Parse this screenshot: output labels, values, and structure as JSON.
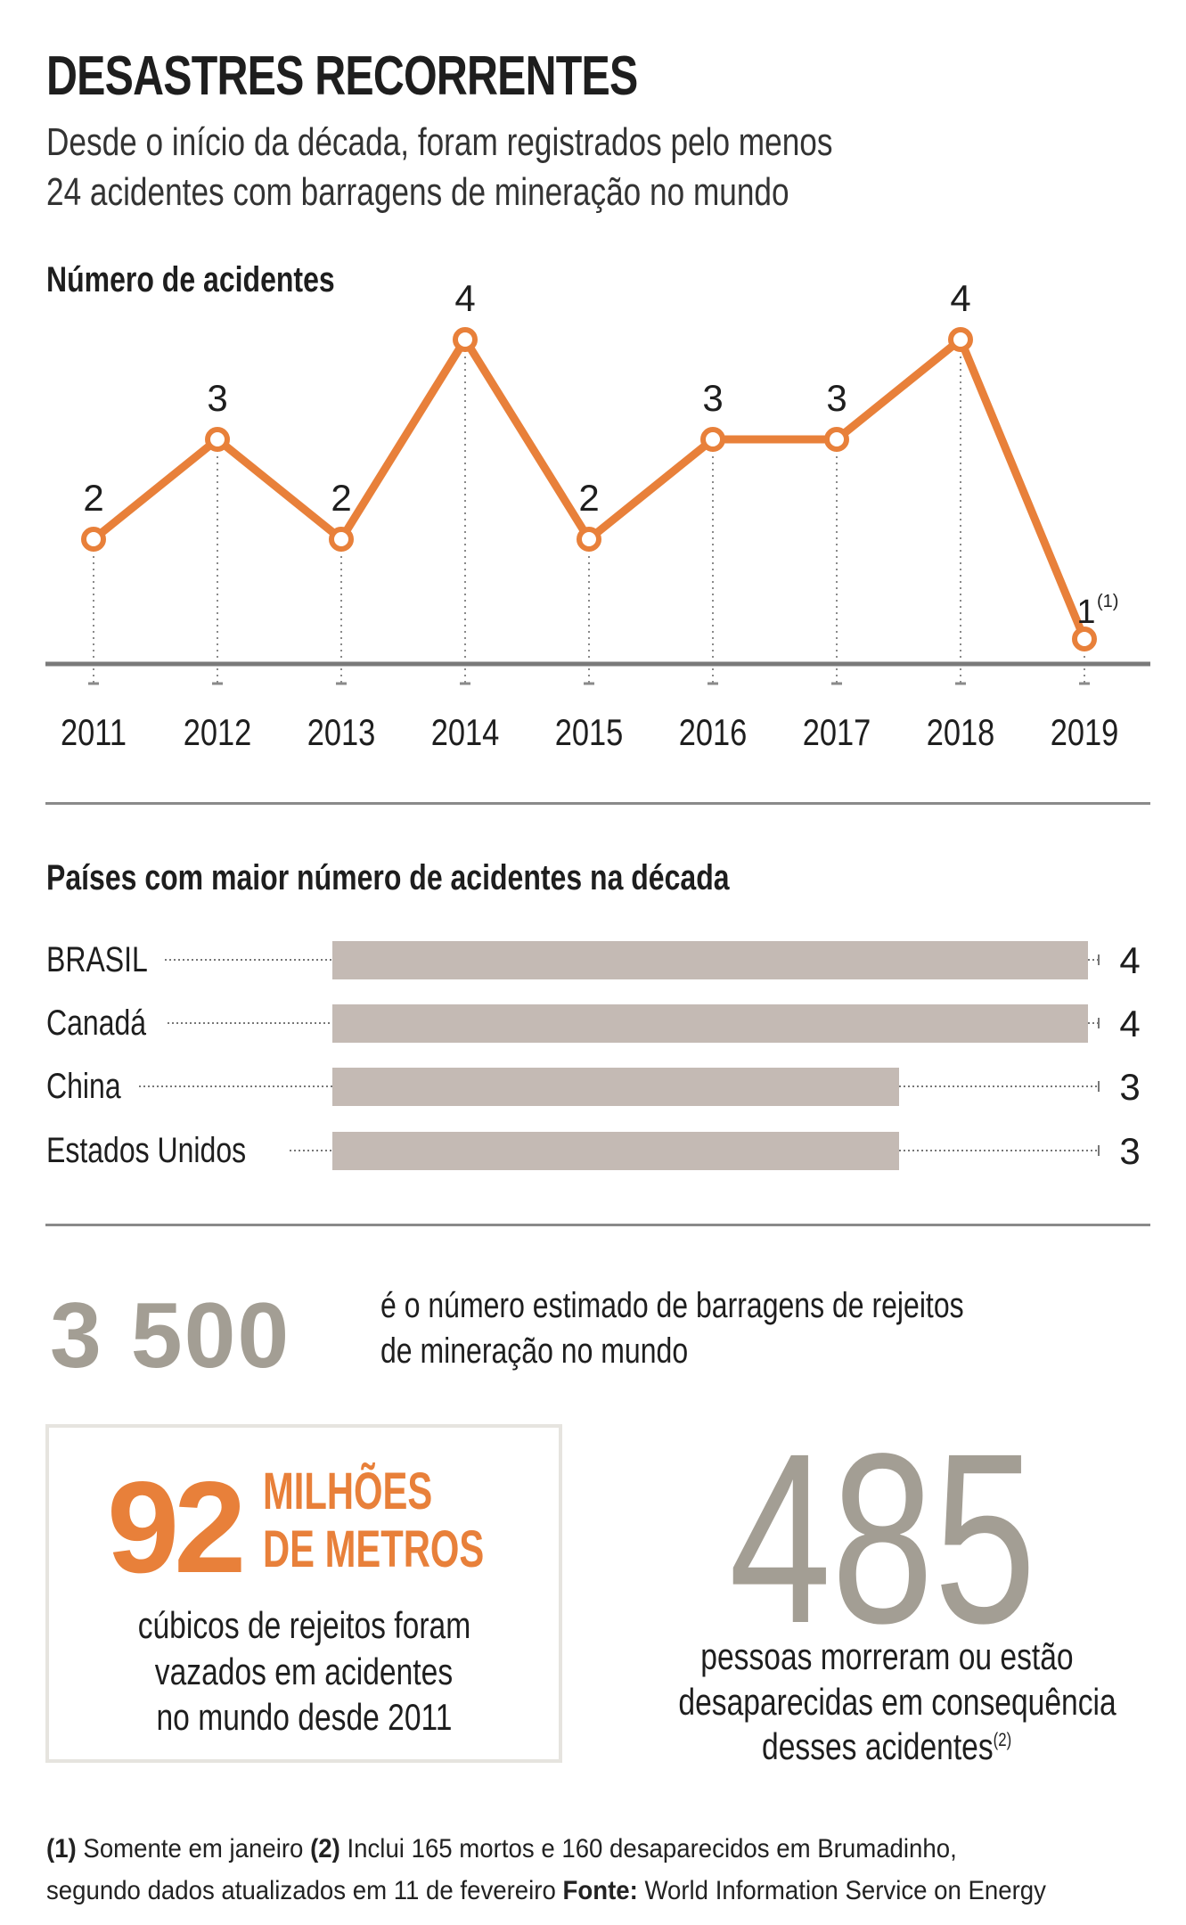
{
  "title": "DESASTRES RECORRENTES",
  "subtitle": [
    "Desde o início da década, foram registrados pelo menos",
    "24 acidentes com barragens de mineração no mundo"
  ],
  "colors": {
    "accent": "#e8803a",
    "bar": "#c4bab4",
    "gray_number": "#a39e94",
    "axis": "#7a7a7a"
  },
  "chart_data": [
    {
      "type": "line",
      "title": "Número de acidentes",
      "x": [
        "2011",
        "2012",
        "2013",
        "2014",
        "2015",
        "2016",
        "2017",
        "2018",
        "2019"
      ],
      "values": [
        2,
        3,
        2,
        4,
        2,
        3,
        3,
        4,
        1
      ],
      "labels": [
        "2",
        "3",
        "2",
        "4",
        "2",
        "3",
        "3",
        "4",
        "1"
      ],
      "annotations": {
        "2019": "(1)"
      },
      "ylim": [
        1,
        4
      ],
      "grid": false
    },
    {
      "type": "bar",
      "title": "Países com maior número de acidentes na década",
      "categories": [
        "BRASIL",
        "Canadá",
        "China",
        "Estados Unidos"
      ],
      "values": [
        4,
        4,
        3,
        3
      ],
      "labels": [
        "4",
        "4",
        "3",
        "3"
      ],
      "xlim": [
        0,
        4
      ]
    }
  ],
  "stat1": {
    "number": "3 500",
    "text": [
      "é o número estimado de barragens de rejeitos",
      "de mineração no mundo"
    ]
  },
  "stat2": {
    "number": "92",
    "unit": [
      "MILHÕES",
      "DE METROS"
    ],
    "text": [
      "cúbicos de rejeitos foram",
      "vazados em acidentes",
      "no mundo desde 2011"
    ]
  },
  "stat3": {
    "number": "485",
    "text": [
      "pessoas morreram ou estão",
      "desaparecidas em consequência",
      "desses acidentes"
    ],
    "note": "(2)"
  },
  "footnotes": {
    "n1_mark": "(1)",
    "n1": " Somente em janeiro ",
    "n2_mark": "(2)",
    "n2": " Inclui 165 mortos e 160 desaparecidos em Brumadinho,",
    "line2": "segundo dados atualizados em 11 de fevereiro ",
    "source_label": "Fonte:",
    "source": " World Information Service on Energy"
  }
}
